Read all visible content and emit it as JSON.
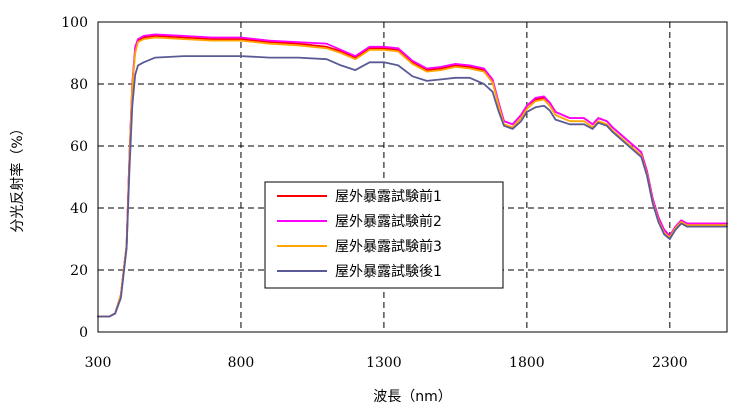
{
  "chart_data": {
    "type": "line",
    "title": "",
    "xlabel": "波長（nm）",
    "ylabel": "分光反射率（%）",
    "xlim": [
      300,
      2500
    ],
    "ylim": [
      0,
      100
    ],
    "xticks": [
      300,
      800,
      1300,
      1800,
      2300
    ],
    "yticks": [
      0,
      20,
      40,
      60,
      80,
      100
    ],
    "grid": true,
    "legend_position": "center-left",
    "series": [
      {
        "name": "屋外暴露試験前1",
        "color": "#ff0000",
        "x": [
          300,
          340,
          360,
          380,
          400,
          410,
          420,
          430,
          440,
          460,
          500,
          600,
          700,
          800,
          900,
          1000,
          1100,
          1150,
          1200,
          1250,
          1300,
          1350,
          1400,
          1450,
          1500,
          1550,
          1600,
          1650,
          1680,
          1700,
          1720,
          1750,
          1780,
          1800,
          1830,
          1860,
          1880,
          1900,
          1950,
          2000,
          2030,
          2050,
          2080,
          2100,
          2150,
          2200,
          2220,
          2240,
          2260,
          2280,
          2300,
          2320,
          2340,
          2360,
          2400,
          2450,
          2500
        ],
        "y": [
          5,
          5,
          6,
          12,
          28,
          56,
          80,
          91,
          94,
          95,
          95.5,
          95,
          94.5,
          94.5,
          93.5,
          93,
          92,
          90.5,
          88.5,
          91.5,
          91.5,
          91,
          87,
          84.5,
          85,
          86,
          85.5,
          84.5,
          81,
          74,
          68,
          67,
          70,
          73,
          75,
          75.5,
          74,
          71,
          69,
          69,
          67,
          69,
          68,
          66,
          62,
          58,
          52,
          43,
          37,
          33,
          31,
          34,
          36,
          35,
          35,
          35,
          35
        ]
      },
      {
        "name": "屋外暴露試験前2",
        "color": "#ff00ff",
        "x": [
          300,
          340,
          360,
          380,
          400,
          410,
          420,
          430,
          440,
          460,
          500,
          600,
          700,
          800,
          900,
          1000,
          1100,
          1150,
          1200,
          1250,
          1300,
          1350,
          1400,
          1450,
          1500,
          1550,
          1600,
          1650,
          1680,
          1700,
          1720,
          1750,
          1780,
          1800,
          1830,
          1860,
          1880,
          1900,
          1950,
          2000,
          2030,
          2050,
          2080,
          2100,
          2150,
          2200,
          2220,
          2240,
          2260,
          2280,
          2300,
          2320,
          2340,
          2360,
          2400,
          2450,
          2500
        ],
        "y": [
          5,
          5,
          6,
          12,
          28,
          56,
          80,
          92,
          94.5,
          95.5,
          96,
          95.5,
          95,
          95,
          94,
          93.5,
          93,
          91,
          89,
          92,
          92,
          91.5,
          87.5,
          85,
          85.5,
          86.5,
          86,
          85,
          81.5,
          74.5,
          68,
          67,
          70,
          73,
          75.5,
          76,
          74,
          71,
          69,
          69,
          67,
          69,
          68,
          66,
          62,
          58,
          52,
          43,
          37,
          33,
          31,
          34,
          36,
          35,
          35,
          35,
          35
        ]
      },
      {
        "name": "屋外暴露試験前3",
        "color": "#ffa500",
        "x": [
          300,
          340,
          360,
          380,
          400,
          410,
          420,
          430,
          440,
          460,
          500,
          600,
          700,
          800,
          900,
          1000,
          1100,
          1150,
          1200,
          1250,
          1300,
          1350,
          1400,
          1450,
          1500,
          1550,
          1600,
          1650,
          1680,
          1700,
          1720,
          1750,
          1780,
          1800,
          1830,
          1860,
          1880,
          1900,
          1950,
          2000,
          2030,
          2050,
          2080,
          2100,
          2150,
          2200,
          2220,
          2240,
          2260,
          2280,
          2300,
          2320,
          2340,
          2360,
          2400,
          2450,
          2500
        ],
        "y": [
          5,
          5,
          6,
          12,
          28,
          55,
          79,
          90,
          93.5,
          94.5,
          95,
          94.5,
          94,
          94,
          93,
          92.5,
          91.5,
          90,
          88,
          91,
          91,
          90.5,
          86.5,
          84,
          84.5,
          85.5,
          85,
          84,
          80.5,
          73.5,
          67,
          66,
          69,
          72,
          74.5,
          75,
          73,
          70,
          68,
          68,
          66,
          68,
          67,
          65,
          61,
          57,
          51,
          42,
          36,
          32,
          30.5,
          33.5,
          35.5,
          34.5,
          34.5,
          34.5,
          34.5
        ]
      },
      {
        "name": "屋外暴露試験後1",
        "color": "#5a5a96",
        "x": [
          300,
          340,
          360,
          380,
          400,
          410,
          420,
          430,
          440,
          460,
          500,
          600,
          700,
          800,
          900,
          1000,
          1100,
          1150,
          1200,
          1250,
          1300,
          1350,
          1400,
          1450,
          1500,
          1550,
          1600,
          1650,
          1680,
          1700,
          1720,
          1750,
          1780,
          1800,
          1830,
          1860,
          1880,
          1900,
          1950,
          2000,
          2030,
          2050,
          2080,
          2100,
          2150,
          2200,
          2220,
          2240,
          2260,
          2280,
          2300,
          2320,
          2340,
          2360,
          2400,
          2450,
          2500
        ],
        "y": [
          5,
          5,
          6,
          11,
          27,
          52,
          73,
          83,
          86,
          87,
          88.5,
          89,
          89,
          89,
          88.5,
          88.5,
          88,
          86,
          84.5,
          87,
          87,
          86,
          82.5,
          81,
          81.5,
          82,
          82,
          80,
          77.5,
          71.5,
          66.5,
          65.5,
          68,
          71,
          72.5,
          73,
          71.5,
          68.5,
          67,
          67,
          65.5,
          67.5,
          66.5,
          64.5,
          60.5,
          56.5,
          50.5,
          41.5,
          35.5,
          31.5,
          30,
          33,
          35,
          34,
          34,
          34,
          34
        ]
      }
    ]
  }
}
